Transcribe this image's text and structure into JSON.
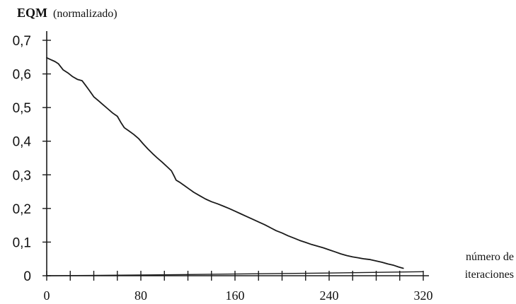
{
  "chart_data": {
    "type": "line",
    "ylabel_main": "EQM",
    "ylabel_note": "(normalizado)",
    "xlabel_line1": "número de",
    "xlabel_line2": "iteraciones",
    "xlim": [
      0,
      320
    ],
    "ylim": [
      0,
      0.7
    ],
    "x_tick_labels": [
      {
        "value": 0,
        "label": "0"
      },
      {
        "value": 80,
        "label": "80"
      },
      {
        "value": 160,
        "label": "160"
      },
      {
        "value": 240,
        "label": "240"
      },
      {
        "value": 320,
        "label": "320"
      }
    ],
    "x_minor_ticks": [
      0,
      20,
      40,
      60,
      80,
      100,
      120,
      140,
      160,
      180,
      200,
      220,
      240,
      260,
      280,
      300,
      320
    ],
    "y_tick_labels": [
      {
        "value": 0,
        "label": "0"
      },
      {
        "value": 0.1,
        "label": "0,1"
      },
      {
        "value": 0.2,
        "label": "0,2"
      },
      {
        "value": 0.3,
        "label": "0,3"
      },
      {
        "value": 0.4,
        "label": "0,4"
      },
      {
        "value": 0.5,
        "label": "0,5"
      },
      {
        "value": 0.6,
        "label": "0,6"
      },
      {
        "value": 0.7,
        "label": "0,7"
      }
    ],
    "series": [
      {
        "x": [
          0,
          3,
          7,
          10,
          14,
          18,
          22,
          26,
          30,
          33,
          36,
          40,
          44,
          48,
          52,
          56,
          60,
          63,
          66,
          70,
          74,
          78,
          82,
          86,
          90,
          94,
          98,
          102,
          106,
          108,
          110,
          113,
          117,
          121,
          125,
          130,
          135,
          140,
          145,
          150,
          155,
          160,
          165,
          170,
          175,
          180,
          185,
          190,
          195,
          200,
          205,
          210,
          215,
          220,
          225,
          230,
          235,
          240,
          245,
          250,
          255,
          260,
          265,
          270,
          275,
          280,
          285,
          290,
          295,
          299,
          303
        ],
        "y": [
          0.648,
          0.643,
          0.637,
          0.63,
          0.612,
          0.603,
          0.592,
          0.584,
          0.58,
          0.566,
          0.552,
          0.532,
          0.52,
          0.508,
          0.496,
          0.484,
          0.474,
          0.456,
          0.44,
          0.43,
          0.42,
          0.408,
          0.392,
          0.377,
          0.363,
          0.35,
          0.338,
          0.325,
          0.312,
          0.298,
          0.284,
          0.278,
          0.268,
          0.258,
          0.248,
          0.238,
          0.228,
          0.22,
          0.214,
          0.207,
          0.2,
          0.192,
          0.184,
          0.176,
          0.168,
          0.16,
          0.152,
          0.143,
          0.134,
          0.127,
          0.119,
          0.112,
          0.105,
          0.099,
          0.093,
          0.088,
          0.083,
          0.077,
          0.071,
          0.065,
          0.06,
          0.056,
          0.053,
          0.05,
          0.048,
          0.044,
          0.04,
          0.035,
          0.031,
          0.026,
          0.022
        ]
      },
      {
        "x": [
          0,
          80,
          160,
          240,
          320
        ],
        "y": [
          0.0,
          0.002,
          0.005,
          0.008,
          0.012
        ]
      }
    ]
  },
  "colors": {
    "ink": "#1a1a1a"
  }
}
